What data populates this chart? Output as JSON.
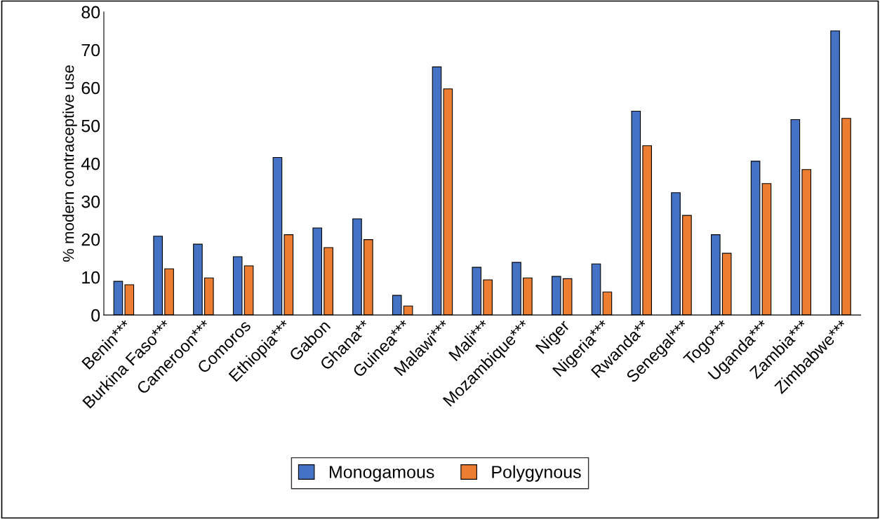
{
  "chart_data": {
    "type": "bar",
    "ylabel": "% modern contraceptive use",
    "categories": [
      "Benin***",
      "Burkina Faso***",
      "Cameroon***",
      "Comoros",
      "Ethiopia***",
      "Gabon",
      "Ghana**",
      "Guinea***",
      "Malawi***",
      "Mali***",
      "Mozambique***",
      "Niger",
      "Nigeria***",
      "Rwanda**",
      "Senegal***",
      "Togo***",
      "Uganda***",
      "Zambia***",
      "Zimbabwe***"
    ],
    "series": [
      {
        "name": "Monogamous",
        "color": "#4472c4",
        "values": [
          8.9,
          20.8,
          18.7,
          15.4,
          41.6,
          23.0,
          25.4,
          5.2,
          65.5,
          12.6,
          13.9,
          10.2,
          13.5,
          53.8,
          32.3,
          21.2,
          40.6,
          51.6,
          75.0
        ]
      },
      {
        "name": "Polygynous",
        "color": "#ed7d31",
        "values": [
          8.0,
          12.2,
          9.8,
          13.0,
          21.2,
          17.8,
          19.9,
          2.4,
          59.7,
          9.3,
          9.8,
          9.6,
          6.1,
          44.7,
          26.3,
          16.3,
          34.7,
          38.4,
          51.9
        ]
      }
    ],
    "ylim": [
      0,
      80
    ],
    "yticks": [
      0,
      10,
      20,
      30,
      40,
      50,
      60,
      70,
      80
    ],
    "grid": false,
    "legend": "bottom"
  }
}
